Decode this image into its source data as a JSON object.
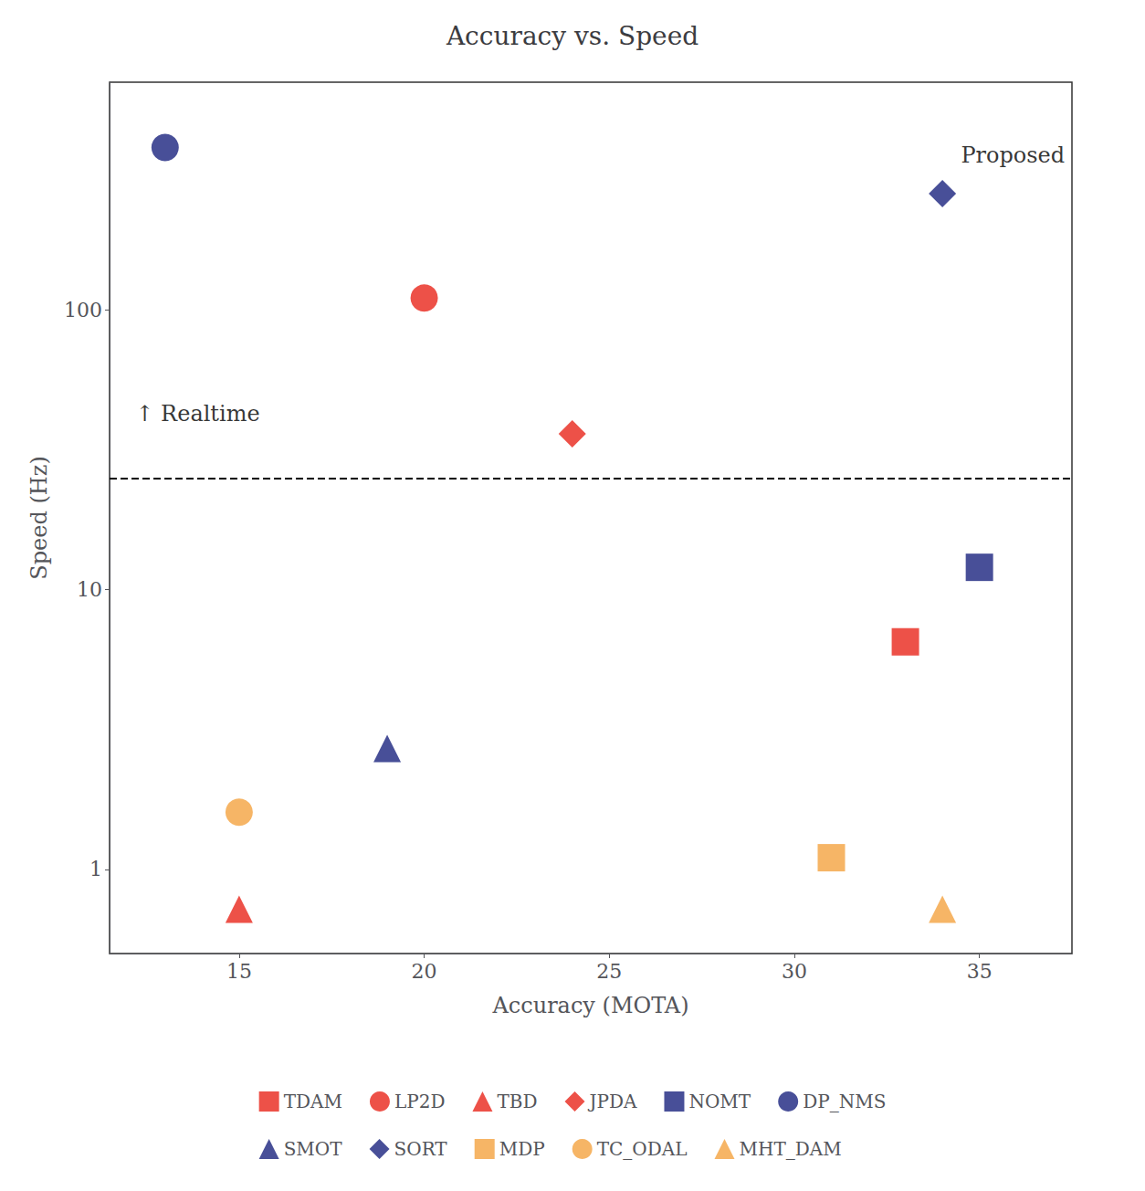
{
  "chart_data": {
    "type": "scatter",
    "title": "Accuracy vs. Speed",
    "xlabel": "Accuracy (MOTA)",
    "ylabel": "Speed (Hz)",
    "xlim": [
      11.5,
      37.5
    ],
    "xticks": [
      15,
      20,
      25,
      30,
      35
    ],
    "ylim": [
      0.5,
      650
    ],
    "yticks": [
      1,
      10,
      100
    ],
    "log": "y",
    "grid": false,
    "legend": "bottom",
    "series": [
      {
        "name": "TDAM",
        "color": "#e8251a",
        "marker": "square",
        "x": [
          33.0
        ],
        "values": [
          6.5
        ]
      },
      {
        "name": "LP2D",
        "color": "#e8251a",
        "marker": "circle",
        "x": [
          20.0
        ],
        "values": [
          110.0
        ]
      },
      {
        "name": "TBD",
        "color": "#e8251a",
        "marker": "triangle",
        "x": [
          15.0
        ],
        "values": [
          0.72
        ]
      },
      {
        "name": "JPDA",
        "color": "#e8251a",
        "marker": "diamond",
        "x": [
          24.0
        ],
        "values": [
          36.0
        ]
      },
      {
        "name": "NOMT",
        "color": "#1a237e",
        "marker": "square",
        "x": [
          35.0
        ],
        "values": [
          12.0
        ]
      },
      {
        "name": "DP_NMS",
        "color": "#1a237e",
        "marker": "circle",
        "x": [
          13.0
        ],
        "values": [
          380.0
        ]
      },
      {
        "name": "SMOT",
        "color": "#1a237e",
        "marker": "triangle",
        "x": [
          19.0
        ],
        "values": [
          2.7
        ]
      },
      {
        "name": "SORT",
        "color": "#1a237e",
        "marker": "diamond",
        "x": [
          34.0
        ],
        "values": [
          260.0
        ]
      },
      {
        "name": "MDP",
        "color": "#f4a340",
        "marker": "square",
        "x": [
          31.0
        ],
        "values": [
          1.1
        ]
      },
      {
        "name": "TC_ODAL",
        "color": "#f4a340",
        "marker": "circle",
        "x": [
          15.0
        ],
        "values": [
          1.6
        ]
      },
      {
        "name": "MHT_DAM",
        "color": "#f4a340",
        "marker": "triangle",
        "x": [
          34.0
        ],
        "values": [
          0.72
        ]
      }
    ],
    "reference_line": {
      "y": 25,
      "line_style": "dashed",
      "color": "#000000"
    },
    "annotations": [
      {
        "text": "↑ Realtime",
        "x": 12.2,
        "y": 38.75
      },
      {
        "text": "Proposed",
        "x": 34.5,
        "y": 325
      }
    ]
  }
}
